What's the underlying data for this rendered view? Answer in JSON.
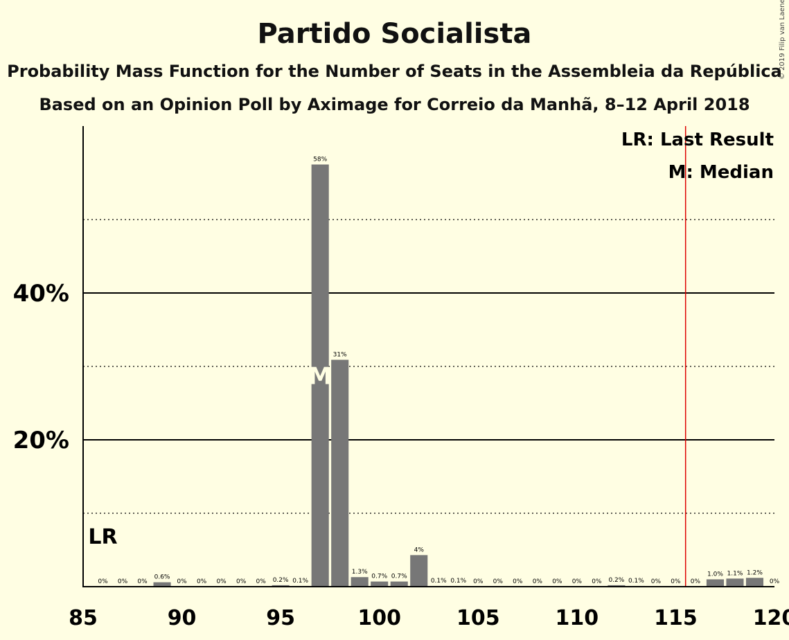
{
  "chart_data": {
    "type": "bar",
    "title": "Partido Socialista",
    "subtitle": "Probability Mass Function for the Number of Seats in the Assembleia da República",
    "subtitle2": "Based on an Opinion Poll by Aximage for Correio da Manhã, 8–12 April 2018",
    "copyright": "© 2019 Filip van Laenen",
    "x": [
      86,
      87,
      88,
      89,
      90,
      91,
      92,
      93,
      94,
      95,
      96,
      97,
      98,
      99,
      100,
      101,
      102,
      103,
      104,
      105,
      106,
      107,
      108,
      109,
      110,
      111,
      112,
      113,
      114,
      115,
      116,
      117,
      118,
      119,
      120
    ],
    "values": [
      0,
      0,
      0,
      0.6,
      0,
      0,
      0,
      0,
      0,
      0.2,
      0.1,
      57.5,
      30.9,
      1.3,
      0.7,
      0.7,
      4.3,
      0.1,
      0.1,
      0,
      0,
      0,
      0,
      0,
      0,
      0,
      0.2,
      0.1,
      0,
      0,
      0,
      1.0,
      1.1,
      1.2,
      0
    ],
    "value_labels": [
      "0%",
      "0%",
      "0%",
      "0.6%",
      "0%",
      "0%",
      "0%",
      "0%",
      "0%",
      "0.2%",
      "0.1%",
      "58%",
      "31%",
      "1.3%",
      "0.7%",
      "0.7%",
      "4%",
      "0.1%",
      "0.1%",
      "0%",
      "0%",
      "0%",
      "0%",
      "0%",
      "0%",
      "0%",
      "0.2%",
      "0.1%",
      "0%",
      "0%",
      "0%",
      "1.0%",
      "1.1%",
      "1.2%",
      "0%"
    ],
    "xlim": [
      85,
      120
    ],
    "ylim": [
      0,
      62
    ],
    "x_ticks": [
      85,
      90,
      95,
      100,
      105,
      110,
      115,
      120
    ],
    "x_tick_labels": [
      "85",
      "90",
      "95",
      "100",
      "105",
      "110",
      "115",
      "120"
    ],
    "y_ticks": [
      20,
      40
    ],
    "y_tick_labels": [
      "20%",
      "40%"
    ],
    "y_minor_ticks": [
      10,
      30,
      50
    ],
    "last_result": 116,
    "last_result_label": "LR",
    "last_result_mark_x": 86,
    "median": 97,
    "median_label": "M",
    "legend": [
      "LR: Last Result",
      "M: Median"
    ],
    "legend_position": "top-right",
    "colors": {
      "bar": "#777777",
      "last_result_line": "#DD0000",
      "background": "#FFFEE3"
    }
  }
}
